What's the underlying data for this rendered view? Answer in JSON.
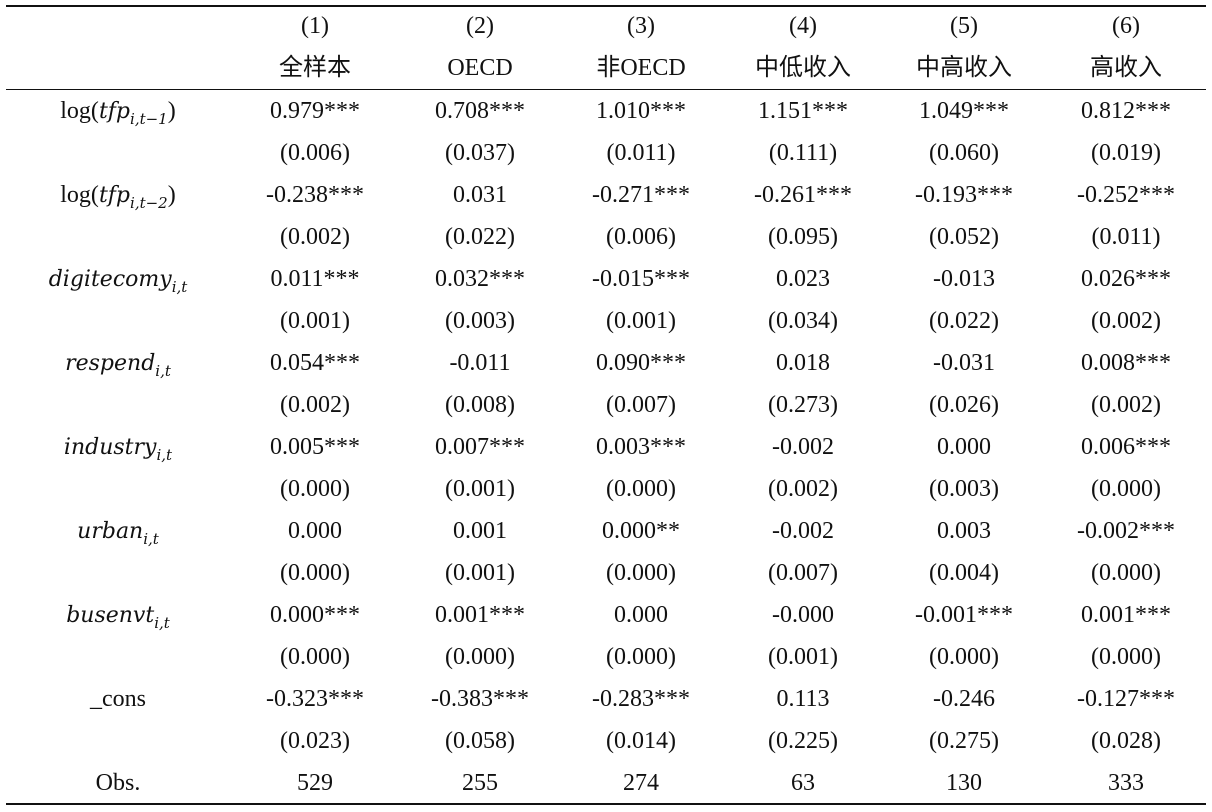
{
  "header": {
    "numbers": [
      "(1)",
      "(2)",
      "(3)",
      "(4)",
      "(5)",
      "(6)"
    ],
    "groups": [
      "全样本",
      "OECD",
      "非OECD",
      "中低收入",
      "中高收入",
      "高收入"
    ]
  },
  "rows": [
    {
      "label": {
        "fn": "log(",
        "var": "tfp",
        "sub": "i,t−1",
        "close": ")"
      },
      "coef": [
        "0.979***",
        "0.708***",
        "1.010***",
        "1.151***",
        "1.049***",
        "0.812***"
      ],
      "se": [
        "(0.006)",
        "(0.037)",
        "(0.011)",
        "(0.111)",
        "(0.060)",
        "(0.019)"
      ]
    },
    {
      "label": {
        "fn": "log(",
        "var": "tfp",
        "sub": "i,t−2",
        "close": ")"
      },
      "coef": [
        "-0.238***",
        "0.031",
        "-0.271***",
        "-0.261***",
        "-0.193***",
        "-0.252***"
      ],
      "se": [
        "(0.002)",
        "(0.022)",
        "(0.006)",
        "(0.095)",
        "(0.052)",
        "(0.011)"
      ]
    },
    {
      "label": {
        "var": "digitecomy",
        "sub": "i,t"
      },
      "coef": [
        "0.011***",
        "0.032***",
        "-0.015***",
        "0.023",
        "-0.013",
        "0.026***"
      ],
      "se": [
        "(0.001)",
        "(0.003)",
        "(0.001)",
        "(0.034)",
        "(0.022)",
        "(0.002)"
      ]
    },
    {
      "label": {
        "var": "respend",
        "sub": "i,t"
      },
      "coef": [
        "0.054***",
        "-0.011",
        "0.090***",
        "0.018",
        "-0.031",
        "0.008***"
      ],
      "se": [
        "(0.002)",
        "(0.008)",
        "(0.007)",
        "(0.273)",
        "(0.026)",
        "(0.002)"
      ]
    },
    {
      "label": {
        "var": "industry",
        "sub": "i,t"
      },
      "coef": [
        "0.005***",
        "0.007***",
        "0.003***",
        "-0.002",
        "0.000",
        "0.006***"
      ],
      "se": [
        "(0.000)",
        "(0.001)",
        "(0.000)",
        "(0.002)",
        "(0.003)",
        "(0.000)"
      ]
    },
    {
      "label": {
        "var": "urban",
        "sub": "i,t"
      },
      "coef": [
        "0.000",
        "0.001",
        "0.000**",
        "-0.002",
        "0.003",
        "-0.002***"
      ],
      "se": [
        "(0.000)",
        "(0.001)",
        "(0.000)",
        "(0.007)",
        "(0.004)",
        "(0.000)"
      ]
    },
    {
      "label": {
        "var": "busenvt",
        "sub": "i,t"
      },
      "coef": [
        "0.000***",
        "0.001***",
        "0.000",
        "-0.000",
        "-0.001***",
        "0.001***"
      ],
      "se": [
        "(0.000)",
        "(0.000)",
        "(0.000)",
        "(0.001)",
        "(0.000)",
        "(0.000)"
      ]
    },
    {
      "label": {
        "plain": "_cons"
      },
      "coef": [
        "-0.323***",
        "-0.383***",
        "-0.283***",
        "0.113",
        "-0.246",
        "-0.127***"
      ],
      "se": [
        "(0.023)",
        "(0.058)",
        "(0.014)",
        "(0.225)",
        "(0.275)",
        "(0.028)"
      ]
    }
  ],
  "obs": {
    "label": "Obs.",
    "values": [
      "529",
      "255",
      "274",
      "63",
      "130",
      "333"
    ]
  }
}
